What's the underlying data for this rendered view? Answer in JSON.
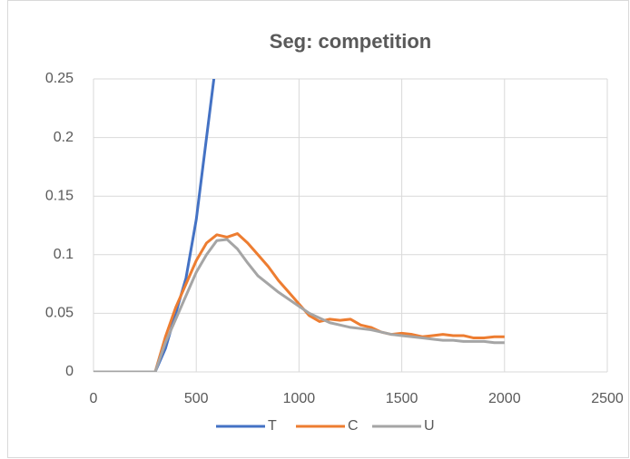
{
  "chart_data": {
    "type": "line",
    "title": "Seg: competition",
    "x": [
      0,
      50,
      100,
      150,
      200,
      250,
      300,
      350,
      400,
      450,
      500,
      550,
      600,
      650,
      700,
      750,
      800,
      850,
      900,
      950,
      1000,
      1050,
      1100,
      1150,
      1200,
      1250,
      1300,
      1350,
      1400,
      1450,
      1500,
      1550,
      1600,
      1650,
      1700,
      1750,
      1800,
      1850,
      1900,
      1950,
      2000
    ],
    "series": [
      {
        "name": "T",
        "color": "#4472c4",
        "values": [
          0,
          0,
          0,
          0,
          0,
          0,
          0,
          0.02,
          0.05,
          0.08,
          0.13,
          0.2,
          0.27,
          null,
          null,
          null,
          null,
          null,
          null,
          null,
          null,
          null,
          null,
          null,
          null,
          null,
          null,
          null,
          null,
          null,
          null,
          null,
          null,
          null,
          null,
          null,
          null,
          null,
          null,
          null,
          null
        ]
      },
      {
        "name": "C",
        "color": "#ed7d31",
        "values": [
          0,
          0,
          0,
          0,
          0,
          0,
          0,
          0.03,
          0.055,
          0.075,
          0.095,
          0.11,
          0.117,
          0.115,
          0.118,
          0.11,
          0.1,
          0.09,
          0.078,
          0.068,
          0.058,
          0.048,
          0.043,
          0.045,
          0.044,
          0.045,
          0.04,
          0.038,
          0.034,
          0.032,
          0.033,
          0.032,
          0.03,
          0.031,
          0.032,
          0.031,
          0.031,
          0.029,
          0.029,
          0.03,
          0.03
        ]
      },
      {
        "name": "U",
        "color": "#a5a5a5",
        "values": [
          0,
          0,
          0,
          0,
          0,
          0,
          0,
          0.025,
          0.045,
          0.065,
          0.085,
          0.1,
          0.112,
          0.113,
          0.105,
          0.093,
          0.082,
          0.075,
          0.068,
          0.062,
          0.056,
          0.05,
          0.046,
          0.042,
          0.04,
          0.038,
          0.037,
          0.036,
          0.034,
          0.032,
          0.031,
          0.03,
          0.029,
          0.028,
          0.027,
          0.027,
          0.026,
          0.026,
          0.026,
          0.025,
          0.025
        ]
      }
    ],
    "xlim": [
      0,
      2500
    ],
    "xticks": [
      0,
      500,
      1000,
      1500,
      2000,
      2500
    ],
    "ylim": [
      0,
      0.25
    ],
    "yticks": [
      0,
      0.05,
      0.1,
      0.15,
      0.2,
      0.25
    ],
    "grid": true,
    "legend": "bottom"
  }
}
